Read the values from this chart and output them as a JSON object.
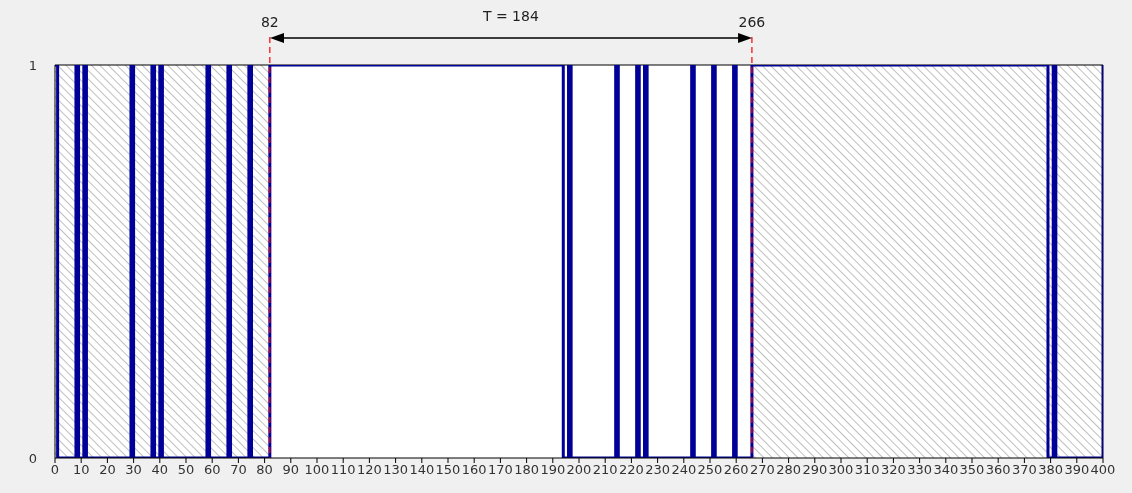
{
  "chart_data": {
    "type": "step",
    "x": [
      0,
      1,
      8,
      9,
      11,
      12,
      29,
      30,
      37,
      38,
      40,
      41,
      58,
      59,
      66,
      67,
      74,
      75,
      82,
      194,
      196,
      197,
      214,
      215,
      222,
      223,
      225,
      226,
      243,
      244,
      251,
      252,
      259,
      260,
      266,
      379,
      381,
      382,
      400
    ],
    "values": [
      1,
      0,
      1,
      0,
      1,
      0,
      1,
      0,
      1,
      0,
      1,
      0,
      1,
      0,
      1,
      0,
      1,
      0,
      1,
      0,
      1,
      0,
      1,
      0,
      1,
      0,
      1,
      0,
      1,
      0,
      1,
      0,
      1,
      0,
      1,
      0,
      1,
      0,
      1
    ],
    "color": "#000099",
    "xlim": [
      0,
      400
    ],
    "xticks": [
      0,
      10,
      20,
      30,
      40,
      50,
      60,
      70,
      80,
      90,
      100,
      110,
      120,
      130,
      140,
      150,
      160,
      170,
      180,
      190,
      200,
      210,
      220,
      230,
      240,
      250,
      260,
      270,
      280,
      290,
      300,
      310,
      320,
      330,
      340,
      350,
      360,
      370,
      380,
      390,
      400
    ],
    "ylim": [
      0,
      1
    ],
    "yticks": [
      0,
      1
    ],
    "ref_lines": [
      {
        "axis": "x",
        "value": 82,
        "label": "82",
        "color": "#ff0000",
        "line_style": "dashed"
      },
      {
        "axis": "x",
        "value": 266,
        "label": "266",
        "color": "#ff0000",
        "line_style": "dashed"
      }
    ],
    "bands": [
      {
        "axis": "x",
        "from": 0,
        "to": 82,
        "color": "#808080"
      },
      {
        "axis": "x",
        "from": 266,
        "to": 400,
        "color": "#808080"
      }
    ],
    "annotations": [
      "T = 184"
    ]
  }
}
